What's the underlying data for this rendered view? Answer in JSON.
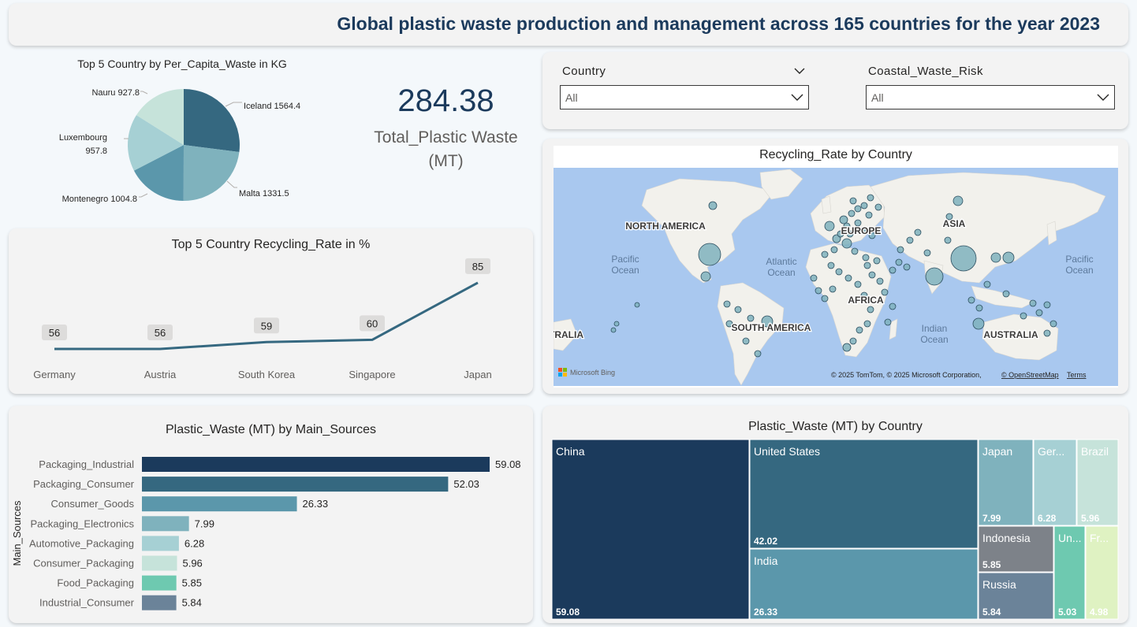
{
  "header": {
    "title": "Global plastic waste production and management across 165 countries for the year 2023"
  },
  "pie": {
    "title": "Top 5 Country by Per_Capita_Waste in KG",
    "chart_data": {
      "type": "pie",
      "slices": [
        {
          "label": "Iceland",
          "value": 1564.4,
          "color": "#356880"
        },
        {
          "label": "Malta",
          "value": 1331.5,
          "color": "#7fb2bd"
        },
        {
          "label": "Montenegro",
          "value": 1004.8,
          "color": "#5b97ab"
        },
        {
          "label": "Luxembourg",
          "value": 957.8,
          "color": "#a6d0d4"
        },
        {
          "label": "Nauru",
          "value": 927.8,
          "color": "#c6e3da"
        }
      ]
    },
    "labels": [
      "Iceland 1564.4",
      "Malta 1331.5",
      "Montenegro 1004.8",
      "Luxembourg",
      "957.8",
      "Nauru 927.8"
    ]
  },
  "kpi": {
    "value": "284.38",
    "label_line1": "Total_Plastic Waste",
    "label_line2": "(MT)"
  },
  "filters": {
    "country": {
      "label": "Country",
      "value": "All"
    },
    "coastal": {
      "label": "Coastal_Waste_Risk",
      "value": "All"
    }
  },
  "line": {
    "title": "Top 5 Country Recycling_Rate in %",
    "chart_data": {
      "type": "line",
      "categories": [
        "Germany",
        "Austria",
        "South Korea",
        "Singapore",
        "Japan"
      ],
      "values": [
        56,
        56,
        59,
        60,
        85
      ],
      "color": "#356880"
    }
  },
  "map": {
    "title": "Recycling_Rate by Country",
    "continents": [
      "NORTH AMERICA",
      "EUROPE",
      "ASIA",
      "AFRICA",
      "SOUTH AMERICA",
      "AUSTRALIA",
      "TRALIA"
    ],
    "oceans": [
      "Pacific",
      "Ocean",
      "Atlantic",
      "Ocean",
      "Indian",
      "Ocean",
      "Pacific",
      "Ocean"
    ],
    "attribution": "© 2025 TomTom, © 2025 Microsoft Corporation,",
    "osm": "© OpenStreetMap",
    "terms": "Terms",
    "bing": "Microsoft Bing",
    "colors": {
      "water": "#a9c8ef",
      "land": "#f2f1ec",
      "bubble": "#7fb2bd"
    }
  },
  "bar": {
    "title": "Plastic_Waste (MT) by Main_Sources",
    "chart_data": {
      "type": "bar",
      "orientation": "horizontal",
      "ylabel": "Main_Sources",
      "categories": [
        "Packaging_Industrial",
        "Packaging_Consumer",
        "Consumer_Goods",
        "Packaging_Electronics",
        "Automotive_Packaging",
        "Consumer_Packaging",
        "Food_Packaging",
        "Industrial_Consumer"
      ],
      "values": [
        59.08,
        52.03,
        26.33,
        7.99,
        6.28,
        5.96,
        5.85,
        5.84
      ],
      "colors": [
        "#1b3a5c",
        "#356880",
        "#5b97ab",
        "#7fb2bd",
        "#a6d0d4",
        "#c6e3da",
        "#6ec9b0",
        "#6b8399"
      ]
    }
  },
  "tree": {
    "title": "Plastic_Waste (MT) by Country",
    "chart_data": {
      "type": "treemap",
      "items": [
        {
          "label": "China",
          "value": 59.08,
          "color": "#1b3a5c"
        },
        {
          "label": "United States",
          "value": 42.02,
          "color": "#356880"
        },
        {
          "label": "India",
          "value": 26.33,
          "color": "#5b97ab"
        },
        {
          "label": "Japan",
          "value": 7.99,
          "color": "#7fb2bd"
        },
        {
          "label": "Ger...",
          "value": 6.28,
          "color": "#a6d0d4"
        },
        {
          "label": "Brazil",
          "value": 5.96,
          "color": "#c6e3da"
        },
        {
          "label": "Indonesia",
          "value": 5.85,
          "color": "#7d8289"
        },
        {
          "label": "Russia",
          "value": 5.84,
          "color": "#6b8399"
        },
        {
          "label": "Un...",
          "value": 5.03,
          "color": "#6ec9b0"
        },
        {
          "label": "Fr...",
          "value": 4.98,
          "color": "#dff2c2"
        }
      ]
    }
  }
}
